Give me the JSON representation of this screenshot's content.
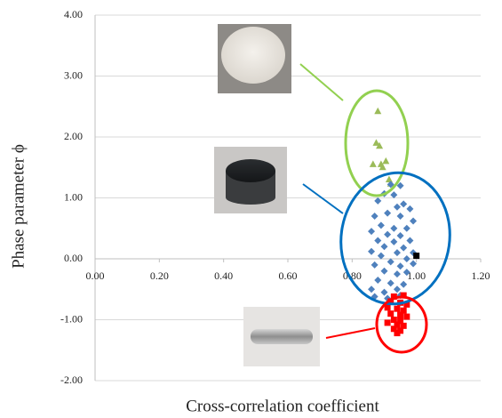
{
  "chart_data": {
    "type": "scatter",
    "x_label": "Cross-correlation coefficient",
    "y_label": "Phase parameter ϕ",
    "xlim": [
      0,
      1.2
    ],
    "ylim": [
      -2,
      4
    ],
    "xticks": [
      {
        "value": 0,
        "label": "0.00"
      },
      {
        "value": 0.2,
        "label": "0.20"
      },
      {
        "value": 0.4,
        "label": "0.40"
      },
      {
        "value": 0.6,
        "label": "0.60"
      },
      {
        "value": 0.8,
        "label": "0.80"
      },
      {
        "value": 1.0,
        "label": "1.00"
      },
      {
        "value": 1.2,
        "label": "1.20"
      }
    ],
    "yticks": [
      {
        "value": -2,
        "label": "-2.00"
      },
      {
        "value": -1,
        "label": "-1.00"
      },
      {
        "value": 0,
        "label": "0.00"
      },
      {
        "value": 1,
        "label": "1.00"
      },
      {
        "value": 2,
        "label": "2.00"
      },
      {
        "value": 3,
        "label": "3.00"
      },
      {
        "value": 4,
        "label": "4.00"
      }
    ],
    "grid": true,
    "series": [
      {
        "color": "#9bbb59",
        "marker": "triangle",
        "x": [
          0.88,
          0.875,
          0.885,
          0.865,
          0.89,
          0.905,
          0.895,
          0.92,
          0.915
        ],
        "y": [
          2.42,
          1.9,
          1.85,
          1.55,
          1.55,
          1.6,
          1.5,
          1.23,
          1.3
        ]
      },
      {
        "color": "#4f81bd",
        "marker": "diamond",
        "x": [
          0.92,
          0.95,
          0.9,
          0.93,
          0.88,
          0.96,
          0.94,
          0.98,
          0.91,
          0.87,
          0.95,
          0.99,
          0.89,
          0.93,
          0.97,
          0.86,
          0.91,
          0.95,
          0.88,
          0.93,
          0.98,
          0.9,
          0.96,
          0.86,
          0.94,
          0.99,
          0.89,
          0.97,
          0.92,
          0.87,
          0.95,
          0.99,
          0.9,
          0.94,
          0.97,
          0.88,
          0.92,
          0.96,
          0.86,
          0.9,
          0.94,
          0.87,
          0.91,
          0.95
        ],
        "y": [
          1.22,
          1.2,
          1.07,
          1.05,
          0.95,
          0.9,
          0.85,
          0.82,
          0.75,
          0.7,
          0.7,
          0.62,
          0.55,
          0.5,
          0.5,
          0.45,
          0.4,
          0.38,
          0.3,
          0.28,
          0.3,
          0.2,
          0.18,
          0.12,
          0.1,
          0.1,
          0.05,
          0.0,
          -0.05,
          -0.1,
          -0.12,
          -0.08,
          -0.2,
          -0.25,
          -0.22,
          -0.35,
          -0.4,
          -0.42,
          -0.5,
          -0.55,
          -0.5,
          -0.62,
          -0.65,
          -0.6
        ]
      },
      {
        "color": "#ff0000",
        "marker": "square",
        "x": [
          0.93,
          0.96,
          0.92,
          0.95,
          0.97,
          0.91,
          0.94,
          0.96,
          0.92,
          0.95,
          0.97,
          0.93,
          0.95,
          0.91,
          0.94,
          0.96,
          0.93,
          0.95,
          0.94
        ],
        "y": [
          -0.62,
          -0.6,
          -0.7,
          -0.72,
          -0.75,
          -0.8,
          -0.82,
          -0.85,
          -0.9,
          -0.92,
          -0.95,
          -1.0,
          -1.02,
          -1.05,
          -1.08,
          -1.1,
          -1.15,
          -1.18,
          -1.22
        ]
      },
      {
        "color": "#000000",
        "marker": "square",
        "x": [
          1.0
        ],
        "y": [
          0.05
        ]
      }
    ]
  }
}
